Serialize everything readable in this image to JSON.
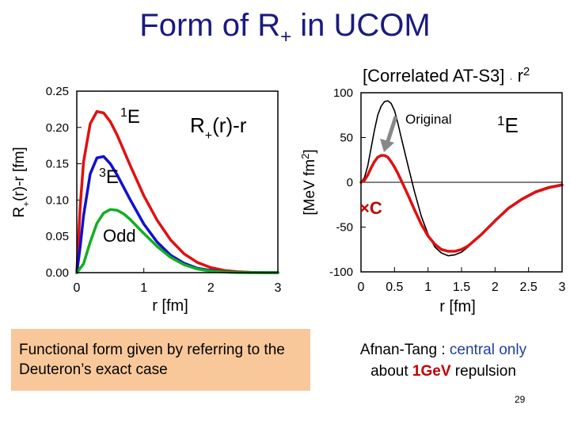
{
  "slide": {
    "title_main": "Form of R",
    "title_sub": "+",
    "title_end": " in UCOM",
    "note": "Functional form given by referring to the Deuteron’s exact case",
    "caption_line1_prefix": "Afnan-Tang : ",
    "caption_line1_highlight": "central only",
    "caption_line2_prefix": "about ",
    "caption_line2_bold": "1GeV",
    "caption_line2_suffix": " repulsion",
    "page_number": "29"
  },
  "chart_data": [
    {
      "type": "line",
      "xlabel": "r [fm]",
      "ylabel": "R+(r)-r [fm]",
      "xlim": [
        0,
        3
      ],
      "ylim": [
        0,
        0.25
      ],
      "x_ticks": [
        "0",
        "1",
        "2",
        "3"
      ],
      "y_ticks": [
        "0.00",
        "0.05",
        "0.10",
        "0.15",
        "0.20",
        "0.25"
      ],
      "annotation": "R+(r)-r",
      "colors": {
        "1E": "#e01010",
        "3E": "#1010d0",
        "Odd": "#10b020"
      },
      "series": [
        {
          "name": "1E",
          "x": [
            0,
            0.05,
            0.1,
            0.2,
            0.3,
            0.4,
            0.5,
            0.6,
            0.8,
            1.0,
            1.2,
            1.4,
            1.6,
            1.8,
            2.0,
            2.2,
            2.4,
            2.6,
            2.8,
            3.0
          ],
          "y": [
            0,
            0.09,
            0.152,
            0.205,
            0.222,
            0.22,
            0.208,
            0.19,
            0.147,
            0.106,
            0.072,
            0.045,
            0.026,
            0.014,
            0.007,
            0.003,
            0.0012,
            0.0004,
            0.0001,
            0
          ]
        },
        {
          "name": "3E",
          "x": [
            0,
            0.05,
            0.1,
            0.2,
            0.3,
            0.4,
            0.5,
            0.6,
            0.8,
            1.0,
            1.2,
            1.4,
            1.6,
            1.8,
            2.0,
            2.2,
            2.4,
            2.6,
            2.8,
            3.0
          ],
          "y": [
            0,
            0.035,
            0.078,
            0.136,
            0.158,
            0.16,
            0.15,
            0.135,
            0.1,
            0.067,
            0.042,
            0.024,
            0.013,
            0.006,
            0.003,
            0.001,
            0.0003,
            0.0001,
            0,
            0
          ]
        },
        {
          "name": "Odd",
          "x": [
            0,
            0.1,
            0.2,
            0.3,
            0.4,
            0.5,
            0.6,
            0.7,
            0.8,
            1.0,
            1.2,
            1.4,
            1.6,
            1.8,
            2.0,
            2.2,
            2.4,
            2.6,
            2.8,
            3.0
          ],
          "y": [
            0,
            0.012,
            0.042,
            0.068,
            0.082,
            0.087,
            0.086,
            0.081,
            0.073,
            0.054,
            0.036,
            0.021,
            0.011,
            0.005,
            0.002,
            0.0008,
            0.0002,
            0,
            0,
            0
          ]
        }
      ]
    },
    {
      "type": "line",
      "title": "[Correlated AT-S3] · r²",
      "xlabel": "r [fm]",
      "ylabel": "[MeV fm²]",
      "xlim": [
        0,
        3
      ],
      "ylim": [
        -100,
        100
      ],
      "x_ticks": [
        "0",
        "0.5",
        "1",
        "1.5",
        "2",
        "2.5",
        "3"
      ],
      "y_ticks": [
        "-100",
        "-50",
        "0",
        "50",
        "100"
      ],
      "annotations": [
        "Original",
        "1E",
        "×C"
      ],
      "colors": {
        "Original": "#000000",
        "Correlated": "#e01010",
        "arrow": "#888888"
      },
      "series": [
        {
          "name": "Original",
          "x": [
            0,
            0.05,
            0.1,
            0.15,
            0.2,
            0.25,
            0.3,
            0.35,
            0.4,
            0.45,
            0.5,
            0.55,
            0.6,
            0.7,
            0.8,
            0.9,
            1.0,
            1.1,
            1.2,
            1.3,
            1.4,
            1.5,
            1.6,
            1.8,
            2.0,
            2.2,
            2.4,
            2.6,
            2.8,
            3.0
          ],
          "y": [
            0,
            5,
            18,
            38,
            58,
            75,
            85,
            90,
            91,
            88,
            80,
            66,
            50,
            19,
            -11,
            -38,
            -58,
            -72,
            -79,
            -82,
            -81,
            -78,
            -72,
            -58,
            -42,
            -28,
            -18,
            -10,
            -5,
            -2
          ]
        },
        {
          "name": "Correlated",
          "x": [
            0,
            0.05,
            0.1,
            0.15,
            0.2,
            0.25,
            0.3,
            0.35,
            0.4,
            0.45,
            0.5,
            0.55,
            0.6,
            0.7,
            0.8,
            0.9,
            1.0,
            1.1,
            1.2,
            1.3,
            1.4,
            1.5,
            1.6,
            1.8,
            2.0,
            2.2,
            2.4,
            2.6,
            2.8,
            3.0
          ],
          "y": [
            0,
            2,
            8,
            16,
            23,
            28,
            30,
            30,
            28,
            23,
            17,
            10,
            2,
            -14,
            -31,
            -47,
            -60,
            -69,
            -75,
            -77,
            -77,
            -75,
            -71,
            -58,
            -43,
            -29,
            -19,
            -11,
            -6,
            -3
          ]
        }
      ]
    }
  ]
}
